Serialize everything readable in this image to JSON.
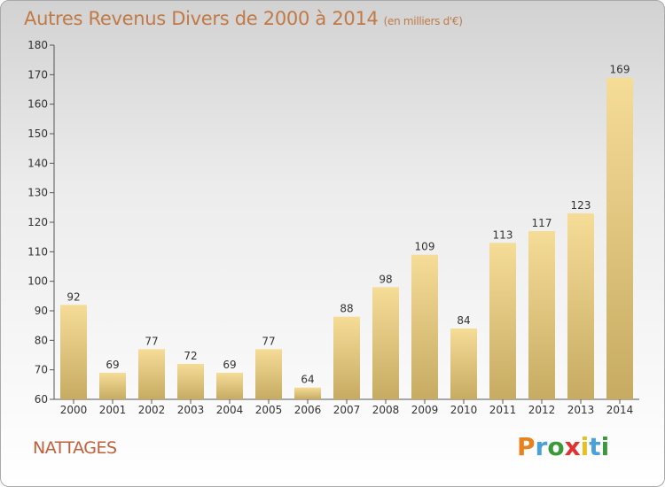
{
  "header": {
    "title": "Autres Revenus Divers de 2000 à 2014",
    "unit": "(en milliers d'€)"
  },
  "footer": {
    "commune": "NATTAGES",
    "brand": "Proxiti"
  },
  "colors": {
    "bar_top": "#f5dc97",
    "bar_bottom": "#c7ab63",
    "title": "#c07a47",
    "commune": "#c0603a"
  },
  "chart_data": {
    "type": "bar",
    "categories": [
      "2000",
      "2001",
      "2002",
      "2003",
      "2004",
      "2005",
      "2006",
      "2007",
      "2008",
      "2009",
      "2010",
      "2011",
      "2012",
      "2013",
      "2014"
    ],
    "values": [
      92,
      69,
      77,
      72,
      69,
      77,
      64,
      88,
      98,
      109,
      84,
      113,
      117,
      123,
      169
    ],
    "title": "Autres Revenus Divers de 2000 à 2014",
    "ylim": [
      60,
      180
    ],
    "yticks": [
      60,
      70,
      80,
      90,
      100,
      110,
      120,
      130,
      140,
      150,
      160,
      170,
      180
    ],
    "grid": false
  }
}
